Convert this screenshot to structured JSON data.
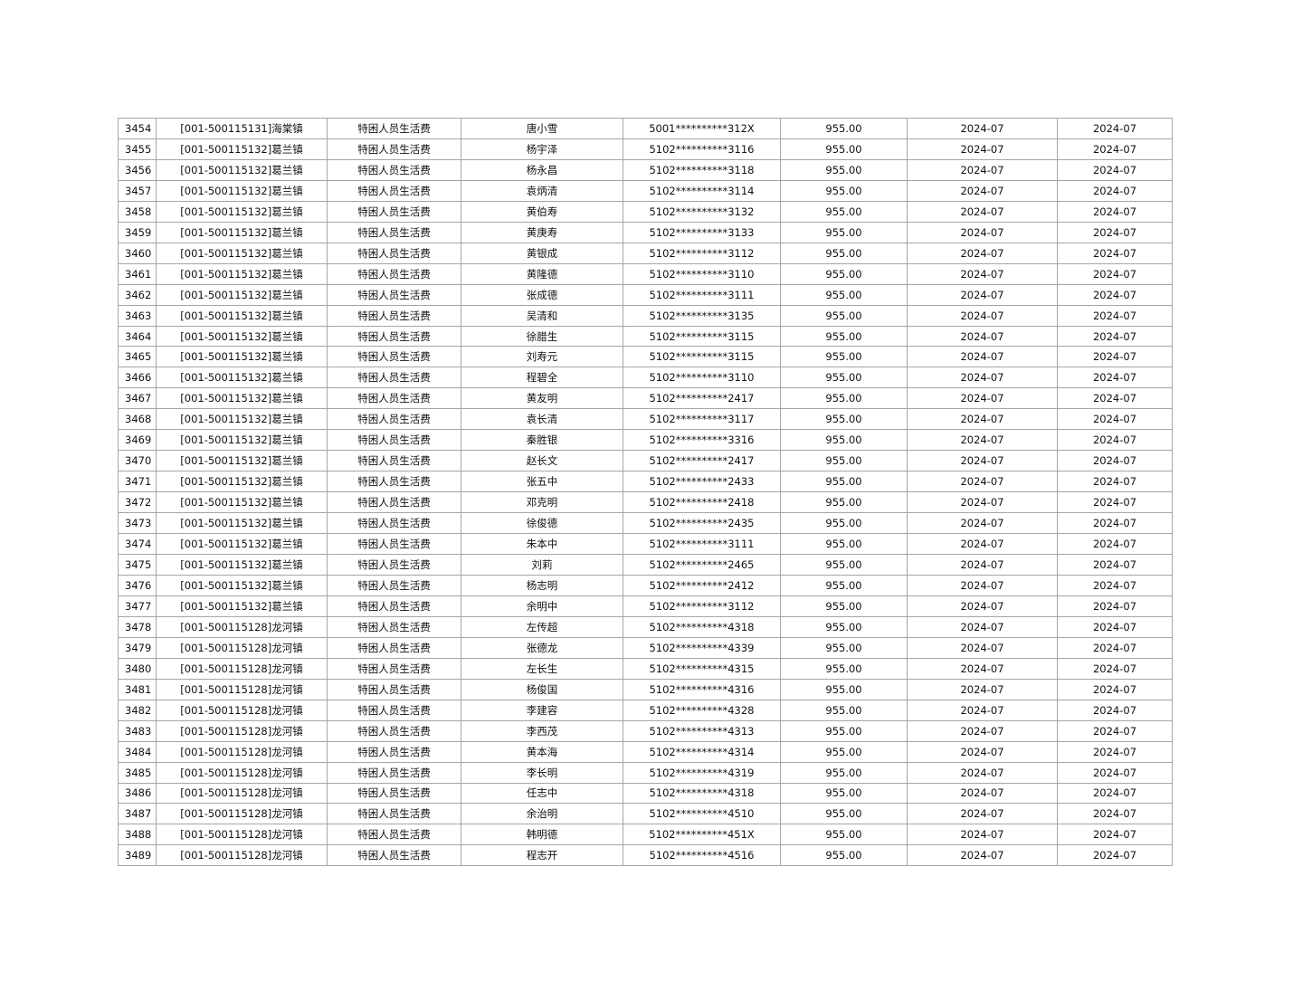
{
  "table": {
    "rows": [
      [
        "3454",
        "[001-500115131]海棠镇",
        "特困人员生活费",
        "唐小雪",
        "5001**********312X",
        "955.00",
        "2024-07",
        "2024-07"
      ],
      [
        "3455",
        "[001-500115132]葛兰镇",
        "特困人员生活费",
        "杨宇泽",
        "5102**********3116",
        "955.00",
        "2024-07",
        "2024-07"
      ],
      [
        "3456",
        "[001-500115132]葛兰镇",
        "特困人员生活费",
        "杨永昌",
        "5102**********3118",
        "955.00",
        "2024-07",
        "2024-07"
      ],
      [
        "3457",
        "[001-500115132]葛兰镇",
        "特困人员生活费",
        "袁炳清",
        "5102**********3114",
        "955.00",
        "2024-07",
        "2024-07"
      ],
      [
        "3458",
        "[001-500115132]葛兰镇",
        "特困人员生活费",
        "黄伯寿",
        "5102**********3132",
        "955.00",
        "2024-07",
        "2024-07"
      ],
      [
        "3459",
        "[001-500115132]葛兰镇",
        "特困人员生活费",
        "黄庚寿",
        "5102**********3133",
        "955.00",
        "2024-07",
        "2024-07"
      ],
      [
        "3460",
        "[001-500115132]葛兰镇",
        "特困人员生活费",
        "黄银成",
        "5102**********3112",
        "955.00",
        "2024-07",
        "2024-07"
      ],
      [
        "3461",
        "[001-500115132]葛兰镇",
        "特困人员生活费",
        "黄隆德",
        "5102**********3110",
        "955.00",
        "2024-07",
        "2024-07"
      ],
      [
        "3462",
        "[001-500115132]葛兰镇",
        "特困人员生活费",
        "张成德",
        "5102**********3111",
        "955.00",
        "2024-07",
        "2024-07"
      ],
      [
        "3463",
        "[001-500115132]葛兰镇",
        "特困人员生活费",
        "吴清和",
        "5102**********3135",
        "955.00",
        "2024-07",
        "2024-07"
      ],
      [
        "3464",
        "[001-500115132]葛兰镇",
        "特困人员生活费",
        "徐腊生",
        "5102**********3115",
        "955.00",
        "2024-07",
        "2024-07"
      ],
      [
        "3465",
        "[001-500115132]葛兰镇",
        "特困人员生活费",
        "刘寿元",
        "5102**********3115",
        "955.00",
        "2024-07",
        "2024-07"
      ],
      [
        "3466",
        "[001-500115132]葛兰镇",
        "特困人员生活费",
        "程碧全",
        "5102**********3110",
        "955.00",
        "2024-07",
        "2024-07"
      ],
      [
        "3467",
        "[001-500115132]葛兰镇",
        "特困人员生活费",
        "黄友明",
        "5102**********2417",
        "955.00",
        "2024-07",
        "2024-07"
      ],
      [
        "3468",
        "[001-500115132]葛兰镇",
        "特困人员生活费",
        "袁长清",
        "5102**********3117",
        "955.00",
        "2024-07",
        "2024-07"
      ],
      [
        "3469",
        "[001-500115132]葛兰镇",
        "特困人员生活费",
        "秦胜银",
        "5102**********3316",
        "955.00",
        "2024-07",
        "2024-07"
      ],
      [
        "3470",
        "[001-500115132]葛兰镇",
        "特困人员生活费",
        "赵长文",
        "5102**********2417",
        "955.00",
        "2024-07",
        "2024-07"
      ],
      [
        "3471",
        "[001-500115132]葛兰镇",
        "特困人员生活费",
        "张五中",
        "5102**********2433",
        "955.00",
        "2024-07",
        "2024-07"
      ],
      [
        "3472",
        "[001-500115132]葛兰镇",
        "特困人员生活费",
        "邓克明",
        "5102**********2418",
        "955.00",
        "2024-07",
        "2024-07"
      ],
      [
        "3473",
        "[001-500115132]葛兰镇",
        "特困人员生活费",
        "徐俊德",
        "5102**********2435",
        "955.00",
        "2024-07",
        "2024-07"
      ],
      [
        "3474",
        "[001-500115132]葛兰镇",
        "特困人员生活费",
        "朱本中",
        "5102**********3111",
        "955.00",
        "2024-07",
        "2024-07"
      ],
      [
        "3475",
        "[001-500115132]葛兰镇",
        "特困人员生活费",
        "刘莉",
        "5102**********2465",
        "955.00",
        "2024-07",
        "2024-07"
      ],
      [
        "3476",
        "[001-500115132]葛兰镇",
        "特困人员生活费",
        "杨志明",
        "5102**********2412",
        "955.00",
        "2024-07",
        "2024-07"
      ],
      [
        "3477",
        "[001-500115132]葛兰镇",
        "特困人员生活费",
        "余明中",
        "5102**********3112",
        "955.00",
        "2024-07",
        "2024-07"
      ],
      [
        "3478",
        "[001-500115128]龙河镇",
        "特困人员生活费",
        "左传超",
        "5102**********4318",
        "955.00",
        "2024-07",
        "2024-07"
      ],
      [
        "3479",
        "[001-500115128]龙河镇",
        "特困人员生活费",
        "张德龙",
        "5102**********4339",
        "955.00",
        "2024-07",
        "2024-07"
      ],
      [
        "3480",
        "[001-500115128]龙河镇",
        "特困人员生活费",
        "左长生",
        "5102**********4315",
        "955.00",
        "2024-07",
        "2024-07"
      ],
      [
        "3481",
        "[001-500115128]龙河镇",
        "特困人员生活费",
        "杨俊国",
        "5102**********4316",
        "955.00",
        "2024-07",
        "2024-07"
      ],
      [
        "3482",
        "[001-500115128]龙河镇",
        "特困人员生活费",
        "李建容",
        "5102**********4328",
        "955.00",
        "2024-07",
        "2024-07"
      ],
      [
        "3483",
        "[001-500115128]龙河镇",
        "特困人员生活费",
        "李西茂",
        "5102**********4313",
        "955.00",
        "2024-07",
        "2024-07"
      ],
      [
        "3484",
        "[001-500115128]龙河镇",
        "特困人员生活费",
        "黄本海",
        "5102**********4314",
        "955.00",
        "2024-07",
        "2024-07"
      ],
      [
        "3485",
        "[001-500115128]龙河镇",
        "特困人员生活费",
        "李长明",
        "5102**********4319",
        "955.00",
        "2024-07",
        "2024-07"
      ],
      [
        "3486",
        "[001-500115128]龙河镇",
        "特困人员生活费",
        "任志中",
        "5102**********4318",
        "955.00",
        "2024-07",
        "2024-07"
      ],
      [
        "3487",
        "[001-500115128]龙河镇",
        "特困人员生活费",
        "余治明",
        "5102**********4510",
        "955.00",
        "2024-07",
        "2024-07"
      ],
      [
        "3488",
        "[001-500115128]龙河镇",
        "特困人员生活费",
        "韩明德",
        "5102**********451X",
        "955.00",
        "2024-07",
        "2024-07"
      ],
      [
        "3489",
        "[001-500115128]龙河镇",
        "特困人员生活费",
        "程志开",
        "5102**********4516",
        "955.00",
        "2024-07",
        "2024-07"
      ]
    ]
  }
}
